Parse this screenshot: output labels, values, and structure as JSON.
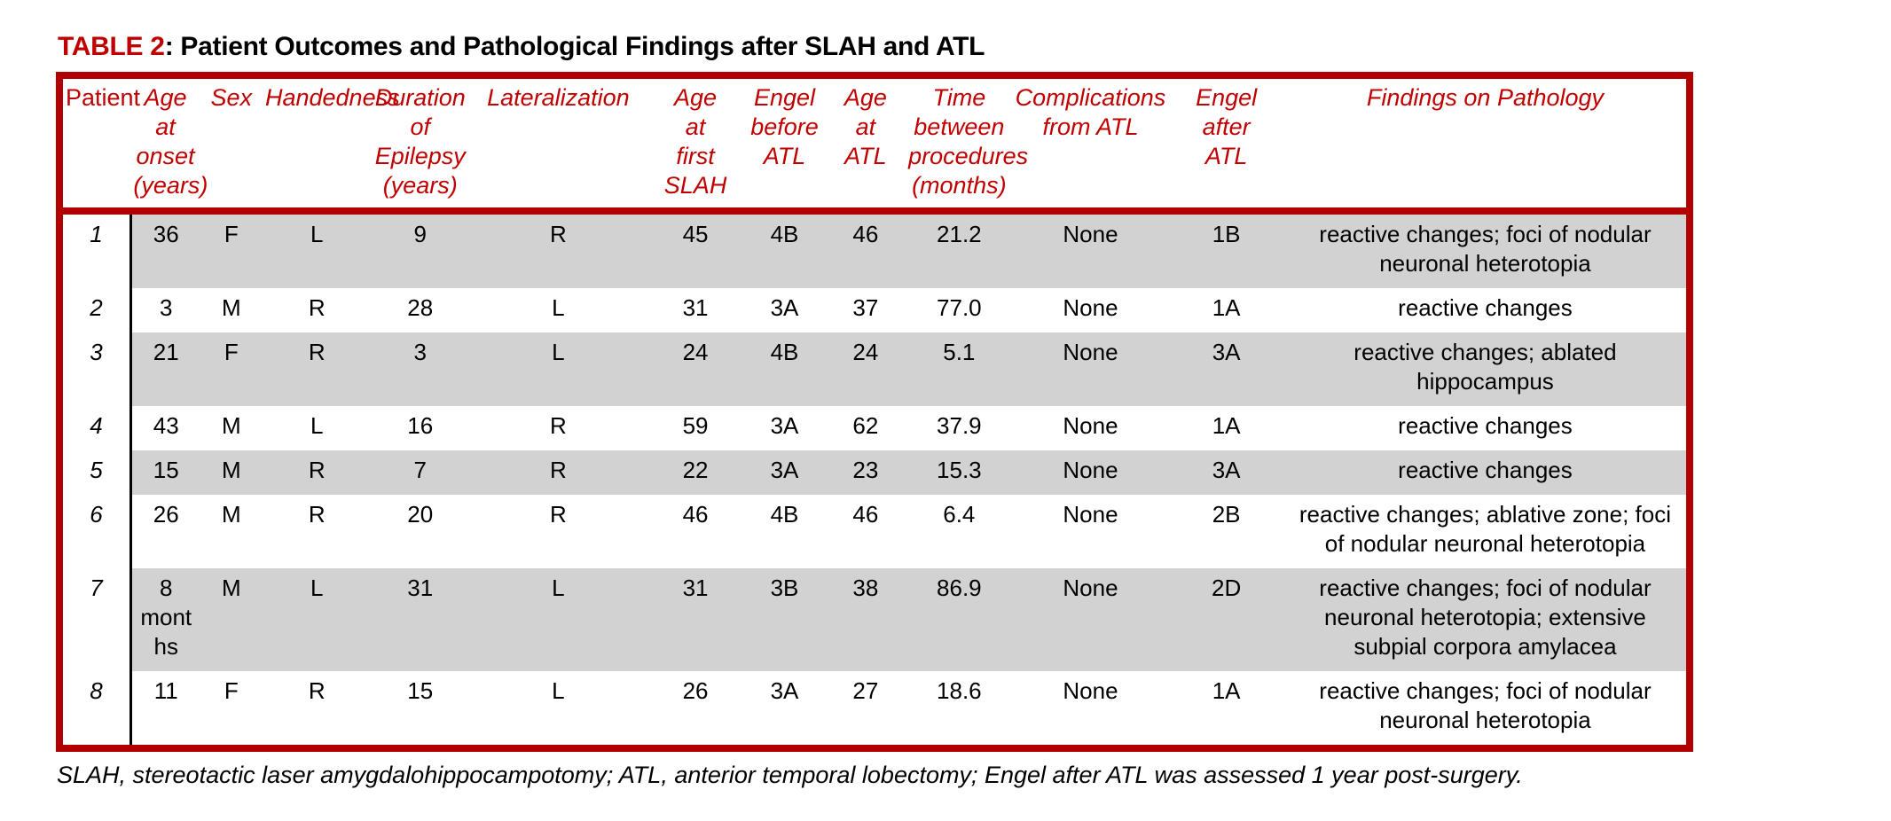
{
  "title": {
    "table_label": "TABLE 2",
    "text": ": Patient Outcomes and Pathological Findings after SLAH and ATL"
  },
  "table": {
    "headers": [
      {
        "field": "patient",
        "label": "Patient"
      },
      {
        "field": "age-at-onset",
        "label": "Age at\nonset\n(years)"
      },
      {
        "field": "sex",
        "label": "Sex"
      },
      {
        "field": "handedness",
        "label": "Handedness"
      },
      {
        "field": "duration-of-epilepsy",
        "label": "Duration\nof\nEpilepsy\n(years)"
      },
      {
        "field": "lateralization",
        "label": "Lateralization"
      },
      {
        "field": "age-at-first-slah",
        "label": "Age\nat\nfirst\nSLAH"
      },
      {
        "field": "engel-before-atl",
        "label": "Engel\nbefore\nATL"
      },
      {
        "field": "age-at-atl",
        "label": "Age\nat\nATL"
      },
      {
        "field": "time-between-procedures",
        "label": "Time\nbetween\nprocedures\n(months)"
      },
      {
        "field": "complications-from-atl",
        "label": "Complications\nfrom ATL"
      },
      {
        "field": "engel-after-atl",
        "label": "Engel\nafter\nATL"
      },
      {
        "field": "findings-on-pathology",
        "label": "Findings on Pathology"
      }
    ],
    "rows": [
      {
        "shaded": true,
        "cells": [
          "1",
          "36",
          "F",
          "L",
          "9",
          "R",
          "45",
          "4B",
          "46",
          "21.2",
          "None",
          "1B",
          "reactive changes; foci of nodular neuronal heterotopia"
        ]
      },
      {
        "shaded": false,
        "cells": [
          "2",
          "3",
          "M",
          "R",
          "28",
          "L",
          "31",
          "3A",
          "37",
          "77.0",
          "None",
          "1A",
          "reactive changes"
        ]
      },
      {
        "shaded": true,
        "cells": [
          "3",
          "21",
          "F",
          "R",
          "3",
          "L",
          "24",
          "4B",
          "24",
          "5.1",
          "None",
          "3A",
          "reactive changes; ablated hippocampus"
        ]
      },
      {
        "shaded": false,
        "cells": [
          "4",
          "43",
          "M",
          "L",
          "16",
          "R",
          "59",
          "3A",
          "62",
          "37.9",
          "None",
          "1A",
          "reactive changes"
        ]
      },
      {
        "shaded": true,
        "cells": [
          "5",
          "15",
          "M",
          "R",
          "7",
          "R",
          "22",
          "3A",
          "23",
          "15.3",
          "None",
          "3A",
          "reactive changes"
        ]
      },
      {
        "shaded": false,
        "cells": [
          "6",
          "26",
          "M",
          "R",
          "20",
          "R",
          "46",
          "4B",
          "46",
          "6.4",
          "None",
          "2B",
          "reactive changes; ablative zone; foci of nodular neuronal heterotopia"
        ]
      },
      {
        "shaded": true,
        "cells": [
          "7",
          "8 months",
          "M",
          "L",
          "31",
          "L",
          "31",
          "3B",
          "38",
          "86.9",
          "None",
          "2D",
          "reactive changes; foci of nodular neuronal heterotopia; extensive subpial corpora amylacea"
        ]
      },
      {
        "shaded": false,
        "cells": [
          "8",
          "11",
          "F",
          "R",
          "15",
          "L",
          "26",
          "3A",
          "27",
          "18.6",
          "None",
          "1A",
          "reactive changes; foci of nodular neuronal heterotopia"
        ]
      }
    ]
  },
  "footnote": "SLAH, stereotactic laser amygdalohippocampotomy; ATL, anterior temporal lobectomy; Engel after ATL was assessed 1 year post-surgery.",
  "colors": {
    "accent_red": "#C00000",
    "border_red": "#B20000",
    "row_shade": "#D2D2D2"
  }
}
